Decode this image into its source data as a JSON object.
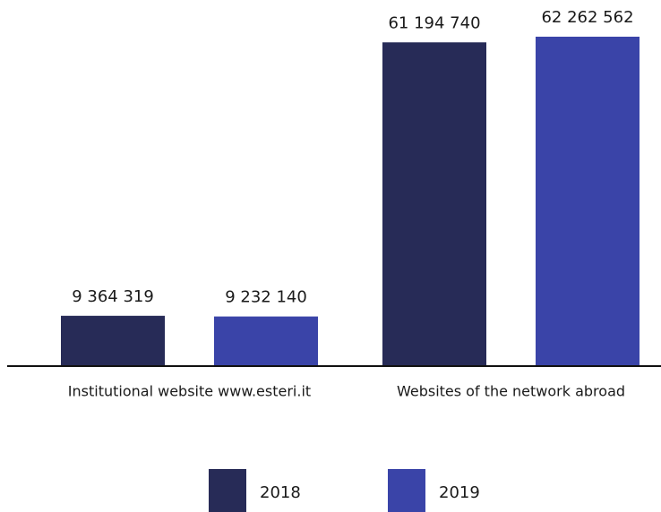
{
  "chart_data": {
    "type": "bar",
    "categories": [
      "Institutional website www.esteri.it",
      "Websites of the network abroad"
    ],
    "series": [
      {
        "name": "2018",
        "color": "#272b57",
        "values": [
          9364319,
          61194740
        ],
        "value_labels": [
          "9 364 319",
          "61 194 740"
        ]
      },
      {
        "name": "2019",
        "color": "#3a44a8",
        "values": [
          9232140,
          62262562
        ],
        "value_labels": [
          "9 232 140",
          "62 262 562"
        ]
      }
    ]
  }
}
